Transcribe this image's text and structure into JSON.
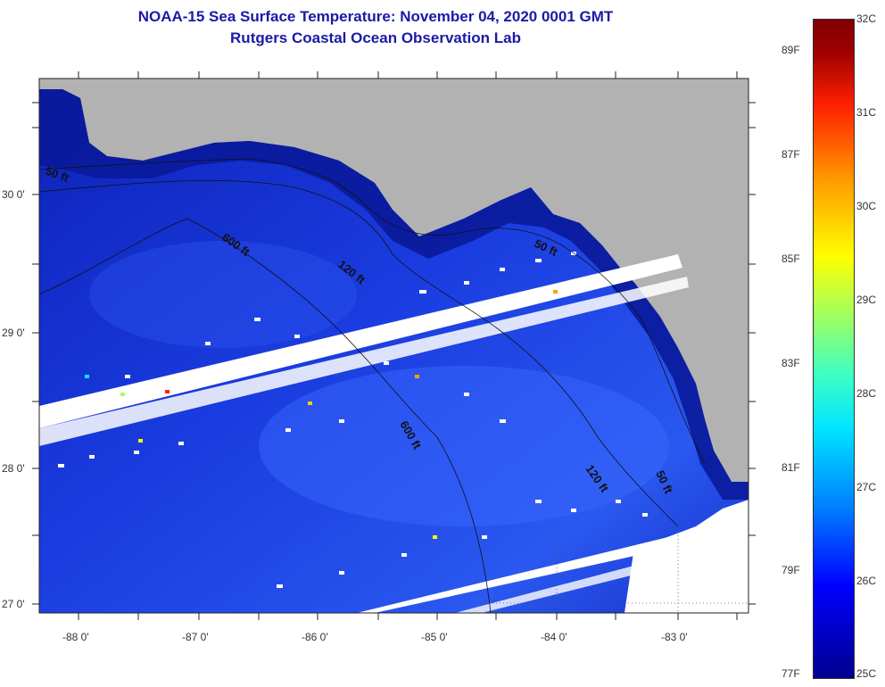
{
  "title": {
    "line1": "NOAA-15 Sea Surface Temperature:  November 04, 2020 0001 GMT",
    "line2": "Rutgers Coastal Ocean Observation Lab"
  },
  "map": {
    "lat_labels": [
      "30 0'",
      "29 0'",
      "28 0'",
      "27 0'"
    ],
    "lon_labels": [
      "-88 0'",
      "-87 0'",
      "-86 0'",
      "-85 0'",
      "-84 0'",
      "-83 0'"
    ],
    "contour_labels": [
      "50 ft",
      "600 ft",
      "120 ft",
      "50 ft",
      "600 ft",
      "120 ft",
      "50 ft"
    ],
    "colors": {
      "land": "#b2b2b2",
      "deep_ocean": "#0a1fa8",
      "cloud": "#ffffff"
    }
  },
  "colorbar": {
    "celsius": [
      "32C",
      "31C",
      "30C",
      "29C",
      "28C",
      "27C",
      "26C",
      "25C"
    ],
    "fahrenheit": [
      "89F",
      "87F",
      "85F",
      "83F",
      "81F",
      "79F",
      "77F"
    ]
  }
}
